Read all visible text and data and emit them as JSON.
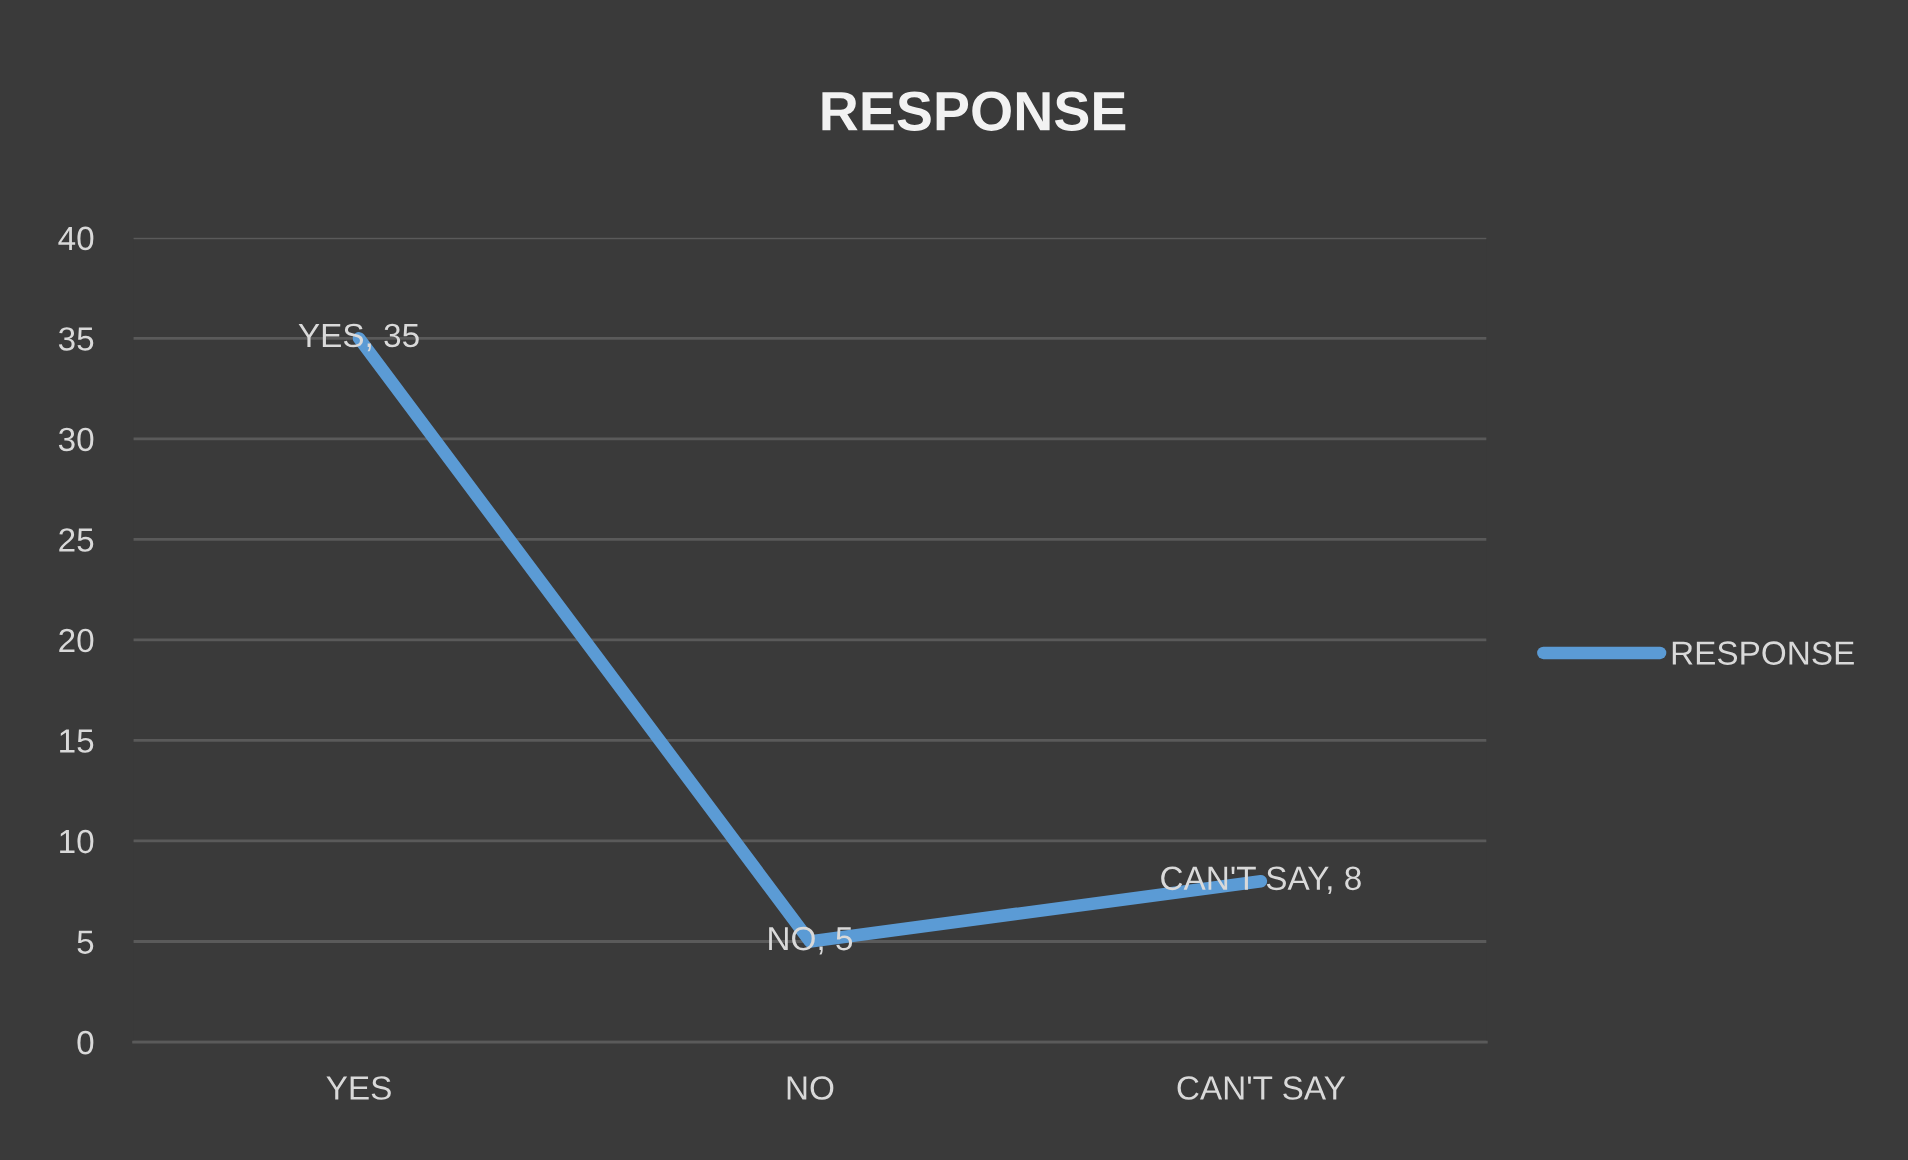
{
  "chart_data": {
    "type": "line",
    "title": "RESPONSE",
    "categories": [
      "YES",
      "NO",
      "CAN'T SAY"
    ],
    "series": [
      {
        "name": "RESPONSE",
        "color": "#5b9bd5",
        "values": [
          35,
          5,
          8
        ],
        "value_labels": [
          "YES, 35",
          "NO, 5",
          "CAN'T SAY, 8"
        ]
      }
    ],
    "ylim": [
      0,
      40
    ],
    "yticks": [
      0,
      5,
      10,
      15,
      20,
      25,
      30,
      35,
      40
    ],
    "grid": "y",
    "legend": "right",
    "line_style": "solid"
  }
}
